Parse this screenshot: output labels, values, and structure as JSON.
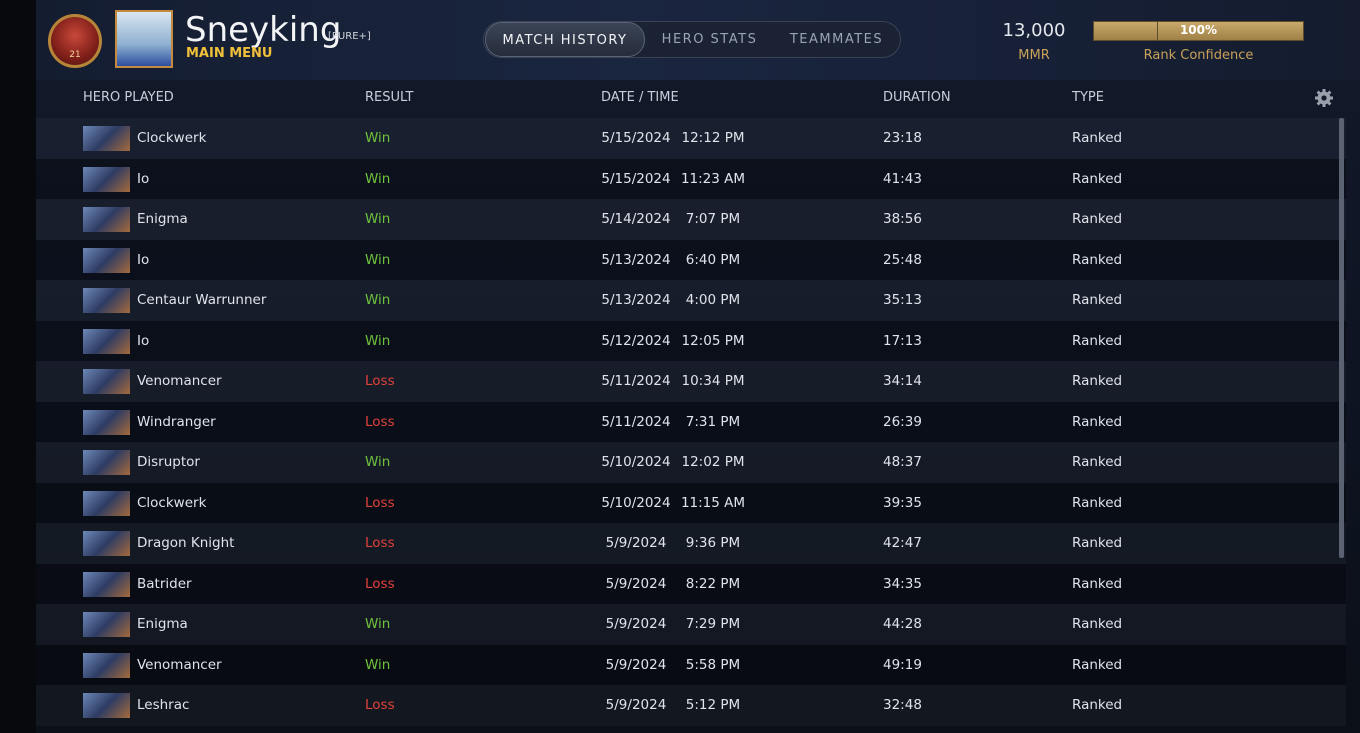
{
  "header": {
    "rank_number": "21",
    "player_name": "Sneyking",
    "player_tag": "[PURE+]",
    "menu_label": "MAIN MENU",
    "tabs": [
      "MATCH HISTORY",
      "HERO STATS",
      "TEAMMATES"
    ],
    "mmr_value": "13,000",
    "mmr_label": "MMR",
    "confidence_value": "100%",
    "confidence_label": "Rank Confidence"
  },
  "table": {
    "columns": [
      "HERO PLAYED",
      "RESULT",
      "DATE / TIME",
      "DURATION",
      "TYPE"
    ],
    "rows": [
      [
        "Clockwerk",
        "Win",
        "5/15/2024",
        "12:12 PM",
        "23:18",
        "Ranked"
      ],
      [
        "Io",
        "Win",
        "5/15/2024",
        "11:23 AM",
        "41:43",
        "Ranked"
      ],
      [
        "Enigma",
        "Win",
        "5/14/2024",
        "7:07 PM",
        "38:56",
        "Ranked"
      ],
      [
        "Io",
        "Win",
        "5/13/2024",
        "6:40 PM",
        "25:48",
        "Ranked"
      ],
      [
        "Centaur Warrunner",
        "Win",
        "5/13/2024",
        "4:00 PM",
        "35:13",
        "Ranked"
      ],
      [
        "Io",
        "Win",
        "5/12/2024",
        "12:05 PM",
        "17:13",
        "Ranked"
      ],
      [
        "Venomancer",
        "Loss",
        "5/11/2024",
        "10:34 PM",
        "34:14",
        "Ranked"
      ],
      [
        "Windranger",
        "Loss",
        "5/11/2024",
        "7:31 PM",
        "26:39",
        "Ranked"
      ],
      [
        "Disruptor",
        "Win",
        "5/10/2024",
        "12:02 PM",
        "48:37",
        "Ranked"
      ],
      [
        "Clockwerk",
        "Loss",
        "5/10/2024",
        "11:15 AM",
        "39:35",
        "Ranked"
      ],
      [
        "Dragon Knight",
        "Loss",
        "5/9/2024",
        "9:36 PM",
        "42:47",
        "Ranked"
      ],
      [
        "Batrider",
        "Loss",
        "5/9/2024",
        "8:22 PM",
        "34:35",
        "Ranked"
      ],
      [
        "Enigma",
        "Win",
        "5/9/2024",
        "7:29 PM",
        "44:28",
        "Ranked"
      ],
      [
        "Venomancer",
        "Win",
        "5/9/2024",
        "5:58 PM",
        "49:19",
        "Ranked"
      ],
      [
        "Leshrac",
        "Loss",
        "5/9/2024",
        "5:12 PM",
        "32:48",
        "Ranked"
      ]
    ]
  }
}
